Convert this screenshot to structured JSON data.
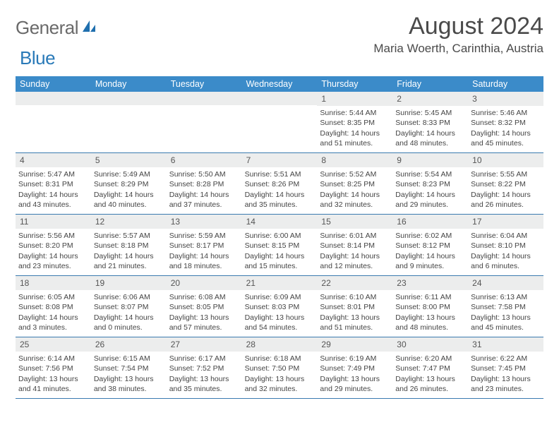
{
  "brand": {
    "left": "General",
    "right": "Blue"
  },
  "title": "August 2024",
  "location": "Maria Woerth, Carinthia, Austria",
  "colors": {
    "header_bg": "#3b8bc9",
    "header_text": "#ffffff",
    "week_divider": "#3b7bb0",
    "daynum_bg": "#eceded",
    "body_text": "#444444",
    "title_text": "#4a4a4a",
    "logo_gray": "#6a6a6a",
    "logo_blue": "#2a7ab8",
    "page_bg": "#ffffff"
  },
  "dayNames": [
    "Sunday",
    "Monday",
    "Tuesday",
    "Wednesday",
    "Thursday",
    "Friday",
    "Saturday"
  ],
  "weeks": [
    [
      {
        "n": "",
        "sr": "",
        "ss": "",
        "dl": ""
      },
      {
        "n": "",
        "sr": "",
        "ss": "",
        "dl": ""
      },
      {
        "n": "",
        "sr": "",
        "ss": "",
        "dl": ""
      },
      {
        "n": "",
        "sr": "",
        "ss": "",
        "dl": ""
      },
      {
        "n": "1",
        "sr": "Sunrise: 5:44 AM",
        "ss": "Sunset: 8:35 PM",
        "dl": "Daylight: 14 hours and 51 minutes."
      },
      {
        "n": "2",
        "sr": "Sunrise: 5:45 AM",
        "ss": "Sunset: 8:33 PM",
        "dl": "Daylight: 14 hours and 48 minutes."
      },
      {
        "n": "3",
        "sr": "Sunrise: 5:46 AM",
        "ss": "Sunset: 8:32 PM",
        "dl": "Daylight: 14 hours and 45 minutes."
      }
    ],
    [
      {
        "n": "4",
        "sr": "Sunrise: 5:47 AM",
        "ss": "Sunset: 8:31 PM",
        "dl": "Daylight: 14 hours and 43 minutes."
      },
      {
        "n": "5",
        "sr": "Sunrise: 5:49 AM",
        "ss": "Sunset: 8:29 PM",
        "dl": "Daylight: 14 hours and 40 minutes."
      },
      {
        "n": "6",
        "sr": "Sunrise: 5:50 AM",
        "ss": "Sunset: 8:28 PM",
        "dl": "Daylight: 14 hours and 37 minutes."
      },
      {
        "n": "7",
        "sr": "Sunrise: 5:51 AM",
        "ss": "Sunset: 8:26 PM",
        "dl": "Daylight: 14 hours and 35 minutes."
      },
      {
        "n": "8",
        "sr": "Sunrise: 5:52 AM",
        "ss": "Sunset: 8:25 PM",
        "dl": "Daylight: 14 hours and 32 minutes."
      },
      {
        "n": "9",
        "sr": "Sunrise: 5:54 AM",
        "ss": "Sunset: 8:23 PM",
        "dl": "Daylight: 14 hours and 29 minutes."
      },
      {
        "n": "10",
        "sr": "Sunrise: 5:55 AM",
        "ss": "Sunset: 8:22 PM",
        "dl": "Daylight: 14 hours and 26 minutes."
      }
    ],
    [
      {
        "n": "11",
        "sr": "Sunrise: 5:56 AM",
        "ss": "Sunset: 8:20 PM",
        "dl": "Daylight: 14 hours and 23 minutes."
      },
      {
        "n": "12",
        "sr": "Sunrise: 5:57 AM",
        "ss": "Sunset: 8:18 PM",
        "dl": "Daylight: 14 hours and 21 minutes."
      },
      {
        "n": "13",
        "sr": "Sunrise: 5:59 AM",
        "ss": "Sunset: 8:17 PM",
        "dl": "Daylight: 14 hours and 18 minutes."
      },
      {
        "n": "14",
        "sr": "Sunrise: 6:00 AM",
        "ss": "Sunset: 8:15 PM",
        "dl": "Daylight: 14 hours and 15 minutes."
      },
      {
        "n": "15",
        "sr": "Sunrise: 6:01 AM",
        "ss": "Sunset: 8:14 PM",
        "dl": "Daylight: 14 hours and 12 minutes."
      },
      {
        "n": "16",
        "sr": "Sunrise: 6:02 AM",
        "ss": "Sunset: 8:12 PM",
        "dl": "Daylight: 14 hours and 9 minutes."
      },
      {
        "n": "17",
        "sr": "Sunrise: 6:04 AM",
        "ss": "Sunset: 8:10 PM",
        "dl": "Daylight: 14 hours and 6 minutes."
      }
    ],
    [
      {
        "n": "18",
        "sr": "Sunrise: 6:05 AM",
        "ss": "Sunset: 8:08 PM",
        "dl": "Daylight: 14 hours and 3 minutes."
      },
      {
        "n": "19",
        "sr": "Sunrise: 6:06 AM",
        "ss": "Sunset: 8:07 PM",
        "dl": "Daylight: 14 hours and 0 minutes."
      },
      {
        "n": "20",
        "sr": "Sunrise: 6:08 AM",
        "ss": "Sunset: 8:05 PM",
        "dl": "Daylight: 13 hours and 57 minutes."
      },
      {
        "n": "21",
        "sr": "Sunrise: 6:09 AM",
        "ss": "Sunset: 8:03 PM",
        "dl": "Daylight: 13 hours and 54 minutes."
      },
      {
        "n": "22",
        "sr": "Sunrise: 6:10 AM",
        "ss": "Sunset: 8:01 PM",
        "dl": "Daylight: 13 hours and 51 minutes."
      },
      {
        "n": "23",
        "sr": "Sunrise: 6:11 AM",
        "ss": "Sunset: 8:00 PM",
        "dl": "Daylight: 13 hours and 48 minutes."
      },
      {
        "n": "24",
        "sr": "Sunrise: 6:13 AM",
        "ss": "Sunset: 7:58 PM",
        "dl": "Daylight: 13 hours and 45 minutes."
      }
    ],
    [
      {
        "n": "25",
        "sr": "Sunrise: 6:14 AM",
        "ss": "Sunset: 7:56 PM",
        "dl": "Daylight: 13 hours and 41 minutes."
      },
      {
        "n": "26",
        "sr": "Sunrise: 6:15 AM",
        "ss": "Sunset: 7:54 PM",
        "dl": "Daylight: 13 hours and 38 minutes."
      },
      {
        "n": "27",
        "sr": "Sunrise: 6:17 AM",
        "ss": "Sunset: 7:52 PM",
        "dl": "Daylight: 13 hours and 35 minutes."
      },
      {
        "n": "28",
        "sr": "Sunrise: 6:18 AM",
        "ss": "Sunset: 7:50 PM",
        "dl": "Daylight: 13 hours and 32 minutes."
      },
      {
        "n": "29",
        "sr": "Sunrise: 6:19 AM",
        "ss": "Sunset: 7:49 PM",
        "dl": "Daylight: 13 hours and 29 minutes."
      },
      {
        "n": "30",
        "sr": "Sunrise: 6:20 AM",
        "ss": "Sunset: 7:47 PM",
        "dl": "Daylight: 13 hours and 26 minutes."
      },
      {
        "n": "31",
        "sr": "Sunrise: 6:22 AM",
        "ss": "Sunset: 7:45 PM",
        "dl": "Daylight: 13 hours and 23 minutes."
      }
    ]
  ]
}
